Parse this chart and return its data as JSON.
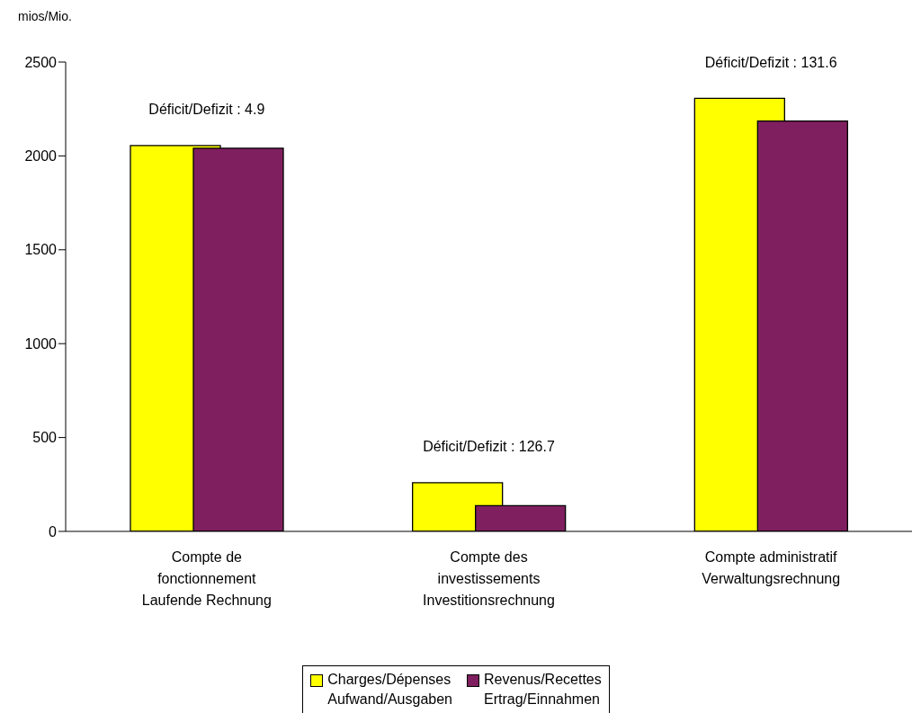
{
  "chart_data": {
    "type": "bar",
    "ylabel": "mios/Mio.",
    "categories": [
      "Compte de\nfonctionnement\nLaufende Rechnung",
      "Compte des\ninvestissements\nInvestitionsrechnung",
      "Compte administratif\nVerwaltungsrechnung"
    ],
    "series": [
      {
        "name": "Charges/Dépenses\nAufwand/Ausgaben",
        "color": "#ffff00",
        "values": [
          2055,
          259,
          2307
        ]
      },
      {
        "name": "Revenus/Recettes\nErtrag/Einnahmen",
        "color": "#7f1f5f",
        "values": [
          2041,
          137,
          2186
        ]
      }
    ],
    "ylim": [
      0,
      2500
    ],
    "yticks": [
      0,
      500,
      1000,
      1500,
      2000,
      2500
    ],
    "grid": false,
    "legend": "bottom",
    "annotations": [
      "Déficit/Defizit : 4.9",
      "Déficit/Defizit : 126.7",
      "Déficit/Defizit : 131.6"
    ]
  }
}
